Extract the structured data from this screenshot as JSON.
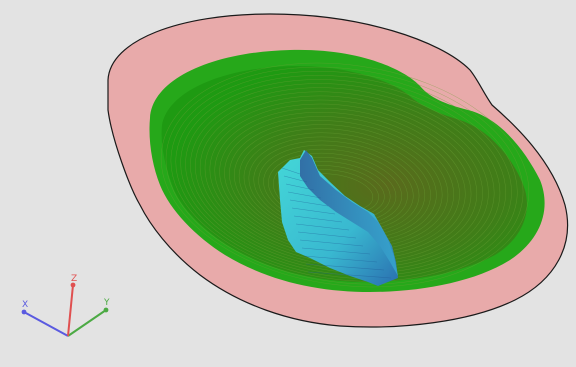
{
  "viewport": {
    "background": "#e3e3e3",
    "colors": {
      "pit_rim": "#e8a8a8",
      "pit_outline": "#1a1a1a",
      "pit_bench_light": "#26a81a",
      "pit_bench_dark": "#4c6e18",
      "orebody_light": "#3ccfd6",
      "orebody_dark": "#2a78b8"
    }
  },
  "axes_gizmo": {
    "x": {
      "label": "X",
      "color": "#5a5ae0"
    },
    "y": {
      "label": "Y",
      "color": "#4caa44"
    },
    "z": {
      "label": "Z",
      "color": "#e05050"
    }
  }
}
